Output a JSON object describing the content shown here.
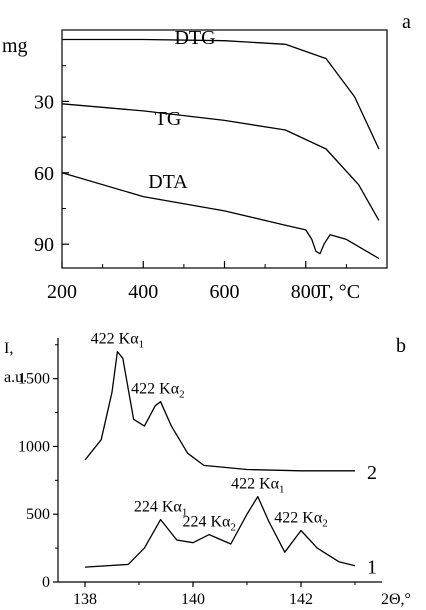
{
  "chart_data": [
    {
      "panel_label": "a",
      "type": "line",
      "x_axis": {
        "label_value": "T, ",
        "label_unit": "°C",
        "ticks": [
          "200",
          "400",
          "600",
          "800"
        ],
        "range": [
          200,
          1000
        ]
      },
      "y_axis": {
        "unit_label": "mg",
        "ticks": [
          "30",
          "60",
          "90"
        ],
        "range": [
          0,
          100
        ],
        "inverted": true
      },
      "series": [
        {
          "name": "DTG",
          "points": [
            [
              200,
              4
            ],
            [
              400,
              4
            ],
            [
              600,
              4.5
            ],
            [
              750,
              6
            ],
            [
              850,
              12
            ],
            [
              920,
              28
            ],
            [
              980,
              50
            ]
          ]
        },
        {
          "name": "TG",
          "points": [
            [
              200,
              31
            ],
            [
              400,
              34
            ],
            [
              600,
              38
            ],
            [
              750,
              42
            ],
            [
              850,
              50
            ],
            [
              930,
              65
            ],
            [
              980,
              80
            ]
          ]
        },
        {
          "name": "DTA",
          "points": [
            [
              200,
              60
            ],
            [
              400,
              70
            ],
            [
              600,
              76
            ],
            [
              750,
              82
            ],
            [
              800,
              84
            ],
            [
              815,
              88
            ],
            [
              825,
              93
            ],
            [
              835,
              94
            ],
            [
              845,
              90
            ],
            [
              860,
              86
            ],
            [
              900,
              88
            ],
            [
              980,
              96
            ]
          ]
        }
      ]
    },
    {
      "panel_label": "b",
      "type": "line",
      "x_axis": {
        "label": "2Θ,°",
        "ticks": [
          "138",
          "140",
          "142"
        ],
        "range": [
          137.5,
          143.5
        ]
      },
      "y_axis": {
        "label_line1": "I,",
        "label_line2": "a.u.",
        "ticks": [
          "0",
          "500",
          "1000",
          "1500"
        ],
        "range": [
          0,
          1800
        ]
      },
      "series": [
        {
          "name": "2",
          "points": [
            [
              138,
              900
            ],
            [
              138.3,
              1050
            ],
            [
              138.5,
              1400
            ],
            [
              138.6,
              1700
            ],
            [
              138.7,
              1650
            ],
            [
              138.9,
              1200
            ],
            [
              139.1,
              1150
            ],
            [
              139.3,
              1300
            ],
            [
              139.4,
              1330
            ],
            [
              139.6,
              1150
            ],
            [
              139.9,
              950
            ],
            [
              140.2,
              860
            ],
            [
              141,
              830
            ],
            [
              142,
              820
            ],
            [
              143,
              820
            ]
          ]
        },
        {
          "name": "1",
          "points": [
            [
              138,
              110
            ],
            [
              138.8,
              130
            ],
            [
              139.1,
              250
            ],
            [
              139.4,
              460
            ],
            [
              139.7,
              310
            ],
            [
              140,
              290
            ],
            [
              140.3,
              350
            ],
            [
              140.7,
              280
            ],
            [
              141,
              500
            ],
            [
              141.2,
              630
            ],
            [
              141.4,
              450
            ],
            [
              141.7,
              220
            ],
            [
              142,
              380
            ],
            [
              142.3,
              250
            ],
            [
              142.7,
              150
            ],
            [
              143,
              120
            ]
          ]
        }
      ],
      "annotations": [
        {
          "text": "422 Kα",
          "sub": "1",
          "x": 138.6,
          "y": 1700
        },
        {
          "text": "422 Kα",
          "sub": "2",
          "x": 139.35,
          "y": 1330
        },
        {
          "text": "224 Kα",
          "sub": "1",
          "x": 139.4,
          "y": 460
        },
        {
          "text": "224 Kα",
          "sub": "2",
          "x": 140.3,
          "y": 350
        },
        {
          "text": "422 Kα",
          "sub": "1",
          "x": 141.2,
          "y": 630
        },
        {
          "text": "422 Kα",
          "sub": "2",
          "x": 142,
          "y": 380
        }
      ]
    }
  ]
}
